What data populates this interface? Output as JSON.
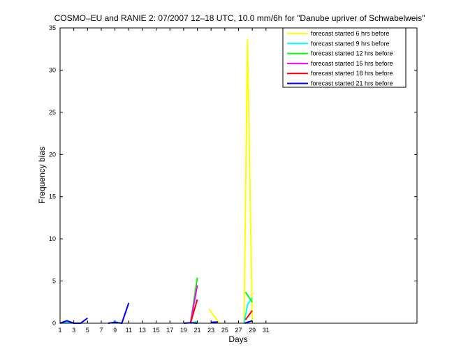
{
  "chart_data": {
    "type": "line",
    "title": "COSMO–EU and RANIE 2: 07/2007 12–18 UTC, 10.0 mm/6h for \"Danube upriver of Schwabelweis\"",
    "xlabel": "Days",
    "ylabel": "Frequency bias",
    "xlim": [
      1,
      53
    ],
    "ylim": [
      0,
      35
    ],
    "xticks": [
      1,
      3,
      5,
      7,
      9,
      11,
      13,
      15,
      17,
      19,
      21,
      23,
      25,
      27,
      29,
      31
    ],
    "yticks": [
      0,
      5,
      10,
      15,
      20,
      25,
      30,
      35
    ],
    "legend_position": "top-right",
    "grid": false,
    "series": [
      {
        "name": "forecast started 6 hrs before",
        "color": "#ffff00",
        "segments": [
          [
            [
              20.0,
              0.0
            ],
            [
              21.0,
              0.3
            ]
          ],
          [
            [
              22.7,
              1.7
            ],
            [
              24.2,
              0.0
            ]
          ],
          [
            [
              27.8,
              0.0
            ],
            [
              28.3,
              33.6
            ],
            [
              29.0,
              0.2
            ]
          ]
        ]
      },
      {
        "name": "forecast started 9 hrs before",
        "color": "#00ffff",
        "segments": [
          [
            [
              1.0,
              0.0
            ],
            [
              2.0,
              0.15
            ],
            [
              3.0,
              0.0
            ]
          ],
          [
            [
              8.5,
              0.0
            ],
            [
              9.0,
              0.25
            ],
            [
              9.6,
              0.0
            ]
          ],
          [
            [
              20.0,
              0.0
            ],
            [
              21.0,
              0.2
            ]
          ],
          [
            [
              27.8,
              0.0
            ],
            [
              28.3,
              2.2
            ],
            [
              29.0,
              3.0
            ]
          ]
        ]
      },
      {
        "name": "forecast started 12 hrs before",
        "color": "#00ff00",
        "segments": [
          [
            [
              20.0,
              0.0
            ],
            [
              21.0,
              5.4
            ]
          ],
          [
            [
              28.0,
              3.7
            ],
            [
              29.0,
              2.5
            ]
          ]
        ]
      },
      {
        "name": "forecast started 15 hrs before",
        "color": "#ff00ff",
        "segments": [
          [
            [
              20.0,
              0.0
            ],
            [
              21.0,
              4.5
            ]
          ]
        ]
      },
      {
        "name": "forecast started 18 hrs before",
        "color": "#ff0000",
        "segments": [
          [
            [
              20.0,
              0.0
            ],
            [
              21.0,
              2.8
            ]
          ],
          [
            [
              28.0,
              0.4
            ],
            [
              29.0,
              1.5
            ]
          ]
        ]
      },
      {
        "name": "forecast started 21 hrs before",
        "color": "#0000ff",
        "segments": [
          [
            [
              1.0,
              0.0
            ],
            [
              2.0,
              0.3
            ],
            [
              3.0,
              0.0
            ],
            [
              4.0,
              0.0
            ],
            [
              5.0,
              0.6
            ]
          ],
          [
            [
              8.0,
              0.0
            ],
            [
              9.0,
              0.1
            ],
            [
              10.0,
              0.0
            ],
            [
              11.0,
              2.4
            ]
          ],
          [
            [
              19.0,
              0.0
            ],
            [
              20.0,
              0.05
            ],
            [
              21.0,
              0.0
            ]
          ],
          [
            [
              23.0,
              0.1
            ],
            [
              24.0,
              0.15
            ]
          ],
          [
            [
              27.9,
              0.0
            ],
            [
              29.0,
              0.3
            ]
          ]
        ]
      }
    ]
  }
}
